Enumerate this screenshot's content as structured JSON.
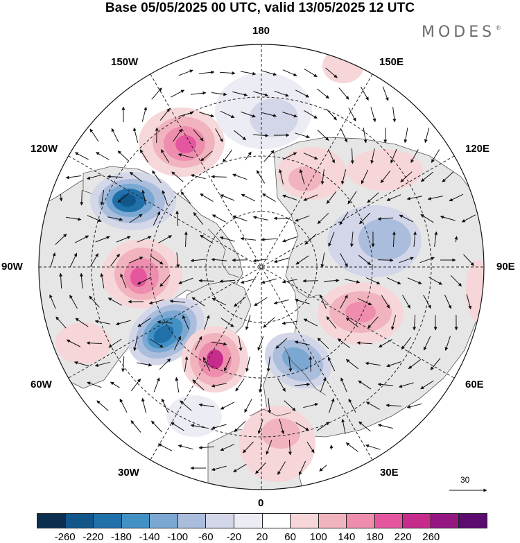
{
  "header": {
    "title": "Base 05/05/2025 00 UTC, valid 13/05/2025 12 UTC",
    "brand": "MODES",
    "brand_mark": "®"
  },
  "map": {
    "projection": "north-polar-stereographic",
    "longitude_labels": {
      "top": "180",
      "bottom": "0",
      "left": "90W",
      "right": "90E",
      "upper_left_1": "150W",
      "upper_left_2": "120W",
      "upper_right_1": "150E",
      "upper_right_2": "120E",
      "lower_left_1": "60W",
      "lower_left_2": "30W",
      "lower_right_1": "60E",
      "lower_right_2": "30E"
    },
    "reference_vector_label": "30",
    "colors": {
      "land_fill": "#e6e6e6",
      "grid": "#222222"
    }
  },
  "colorbar": {
    "colors": [
      "#0d2f4f",
      "#12568a",
      "#2070aa",
      "#4390c4",
      "#7aa8d2",
      "#abbddc",
      "#d3d6e8",
      "#ececf4",
      "#ffffff",
      "#f6d6d8",
      "#f1b4bf",
      "#ee8dae",
      "#e4579f",
      "#c62c8b",
      "#951882",
      "#5b0c6e"
    ],
    "labels": [
      "-260",
      "-220",
      "-180",
      "-140",
      "-100",
      "-60",
      "-20",
      "20",
      "60",
      "100",
      "140",
      "180",
      "220",
      "260"
    ]
  }
}
